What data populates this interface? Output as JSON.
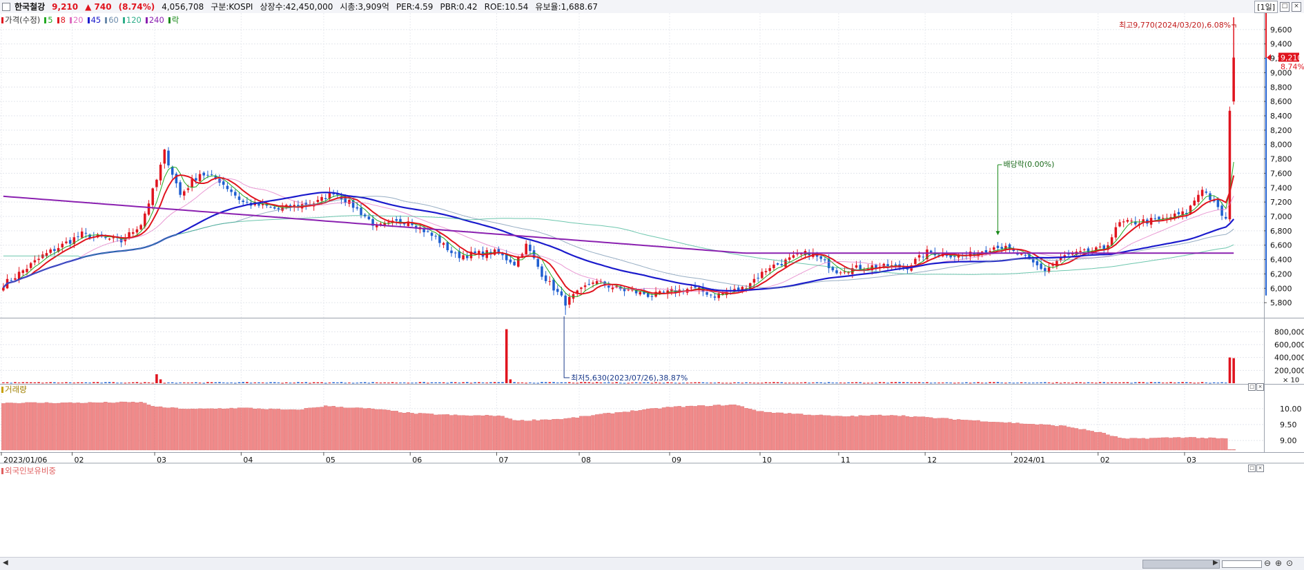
{
  "header": {
    "stock_name": "한국철강",
    "price": "9,210",
    "change": "▲ 740",
    "change_pct": "(8.74%)",
    "volume": "4,056,708",
    "market": "구분:KOSPI",
    "shares": "상장수:42,450,000",
    "market_cap": "시총:3,909억",
    "per": "PER:4.59",
    "pbr": "PBR:0.42",
    "roe": "ROE:10.54",
    "float": "유보율:1,688.67",
    "period": "[1일]"
  },
  "legend": {
    "price_label": "가격(수정)",
    "ma": [
      {
        "label": "5",
        "color": "#22aa22"
      },
      {
        "label": "8",
        "color": "#e0141e"
      },
      {
        "label": "20",
        "color": "#e06cc0"
      },
      {
        "label": "45",
        "color": "#1a1acc"
      },
      {
        "label": "60",
        "color": "#6a8aaa"
      },
      {
        "label": "120",
        "color": "#2eae8a"
      },
      {
        "label": "240",
        "color": "#8a20b0"
      }
    ],
    "ex_label": "락"
  },
  "panels": {
    "volume_label": "거래량",
    "foreign_label": "외국인보유비중"
  },
  "colors": {
    "up": "#e0141e",
    "down": "#1f5fd0",
    "foreign_bar": "#f08a8a",
    "volume_bar": "#e0141e"
  },
  "chart_data": [
    {
      "type": "candlestick",
      "title": "가격(수정)",
      "ylim": [
        5600,
        9800
      ],
      "y_ticks": [
        "9,600",
        "9,400",
        "9,200",
        "9,000",
        "8,800",
        "8,600",
        "8,400",
        "8,200",
        "8,000",
        "7,800",
        "7,600",
        "7,400",
        "7,200",
        "7,000",
        "6,800",
        "6,600",
        "6,400",
        "6,200",
        "6,000",
        "5,800"
      ],
      "y_tick_values": [
        9600,
        9400,
        9200,
        9000,
        8800,
        8600,
        8400,
        8200,
        8000,
        7800,
        7600,
        7400,
        7200,
        7000,
        6800,
        6600,
        6400,
        6200,
        6000,
        5800
      ],
      "x_tick_labels": [
        "2023/01/06",
        "02",
        "03",
        "04",
        "05",
        "06",
        "07",
        "08",
        "09",
        "10",
        "11",
        "12",
        "2024/01",
        "02",
        "03"
      ],
      "x_tick_dates": [
        "2023-01-06",
        "2023-02-01",
        "2023-03-02",
        "2023-04-03",
        "2023-05-02",
        "2023-06-01",
        "2023-07-03",
        "2023-08-01",
        "2023-09-01",
        "2023-10-04",
        "2023-11-01",
        "2023-12-01",
        "2024-01-02",
        "2024-02-01",
        "2024-03-04"
      ],
      "last_date": "2024-03-20",
      "close_path": [
        [
          "2023-01-06",
          6050
        ],
        [
          "2023-01-20",
          6450
        ],
        [
          "2023-02-03",
          6750
        ],
        [
          "2023-02-17",
          6650
        ],
        [
          "2023-02-24",
          6900
        ],
        [
          "2023-03-02",
          7500
        ],
        [
          "2023-03-06",
          7900
        ],
        [
          "2023-03-10",
          7300
        ],
        [
          "2023-03-17",
          7600
        ],
        [
          "2023-03-24",
          7500
        ],
        [
          "2023-04-03",
          7200
        ],
        [
          "2023-04-14",
          7100
        ],
        [
          "2023-04-28",
          7200
        ],
        [
          "2023-05-04",
          7350
        ],
        [
          "2023-05-12",
          7100
        ],
        [
          "2023-05-19",
          6850
        ],
        [
          "2023-05-31",
          6950
        ],
        [
          "2023-06-09",
          6700
        ],
        [
          "2023-06-16",
          6450
        ],
        [
          "2023-06-30",
          6500
        ],
        [
          "2023-07-07",
          6350
        ],
        [
          "2023-07-12",
          6600
        ],
        [
          "2023-07-18",
          6200
        ],
        [
          "2023-07-26",
          5800
        ],
        [
          "2023-08-04",
          6100
        ],
        [
          "2023-08-14",
          6000
        ],
        [
          "2023-08-25",
          5900
        ],
        [
          "2023-09-08",
          6000
        ],
        [
          "2023-09-18",
          5900
        ],
        [
          "2023-09-27",
          6000
        ],
        [
          "2023-10-06",
          6300
        ],
        [
          "2023-10-13",
          6400
        ],
        [
          "2023-10-20",
          6500
        ],
        [
          "2023-10-31",
          6250
        ],
        [
          "2023-11-10",
          6300
        ],
        [
          "2023-11-24",
          6300
        ],
        [
          "2023-12-01",
          6500
        ],
        [
          "2023-12-15",
          6450
        ],
        [
          "2023-12-27",
          6600
        ],
        [
          "2024-01-04",
          6450
        ],
        [
          "2024-01-12",
          6250
        ],
        [
          "2024-01-19",
          6450
        ],
        [
          "2024-02-02",
          6550
        ],
        [
          "2024-02-08",
          6900
        ],
        [
          "2024-02-22",
          6950
        ],
        [
          "2024-03-04",
          7050
        ],
        [
          "2024-03-08",
          7400
        ],
        [
          "2024-03-14",
          7100
        ],
        [
          "2024-03-18",
          6950
        ],
        [
          "2024-03-19",
          8470
        ],
        [
          "2024-03-20",
          9210
        ]
      ],
      "moving_averages": [
        {
          "name": "5",
          "color": "#22aa22"
        },
        {
          "name": "8",
          "color": "#e0141e"
        },
        {
          "name": "20",
          "color": "#e06cc0"
        },
        {
          "name": "45",
          "color": "#1a1acc"
        },
        {
          "name": "60",
          "color": "#6a8aaa"
        },
        {
          "name": "120",
          "color": "#2eae8a"
        },
        {
          "name": "240",
          "color": "#8a20b0"
        }
      ],
      "current_price_label": "9,210",
      "current_pct_label": "8.74%",
      "annotations": {
        "high": {
          "text": "최고9,770(2024/03/20),6.08%",
          "value": 9770,
          "date": "2024-03-20"
        },
        "low": {
          "text": "최저5,630(2023/07/26),38.87%",
          "value": 5630,
          "date": "2023-07-26"
        },
        "ex_div": {
          "text": "배당락(0.00%)",
          "date": "2023-12-27"
        }
      }
    },
    {
      "type": "bar",
      "title": "거래량",
      "unit_label": "× 10",
      "ylim": [
        0,
        900000
      ],
      "y_ticks": [
        "800,000",
        "600,000",
        "400,000",
        "200,000"
      ],
      "y_tick_values": [
        800000,
        600000,
        400000,
        200000
      ],
      "spikes": [
        {
          "date": "2023-03-02",
          "value": 140000
        },
        {
          "date": "2023-03-03",
          "value": 60000
        },
        {
          "date": "2023-07-05",
          "value": 840000
        },
        {
          "date": "2023-07-06",
          "value": 60000
        },
        {
          "date": "2024-03-19",
          "value": 400000
        },
        {
          "date": "2024-03-20",
          "value": 390000
        }
      ],
      "baseline": 12000
    },
    {
      "type": "bar",
      "title": "외국인보유비중",
      "ylim": [
        8.7,
        10.45
      ],
      "y_ticks": [
        "10.00",
        "9.50",
        "9.00"
      ],
      "y_tick_values": [
        10.0,
        9.5,
        9.0
      ],
      "path": [
        [
          "2023-01-06",
          10.18
        ],
        [
          "2023-02-01",
          10.18
        ],
        [
          "2023-02-24",
          10.2
        ],
        [
          "2023-03-02",
          10.05
        ],
        [
          "2023-03-15",
          9.98
        ],
        [
          "2023-04-03",
          10.02
        ],
        [
          "2023-04-20",
          9.95
        ],
        [
          "2023-05-02",
          10.08
        ],
        [
          "2023-05-20",
          9.98
        ],
        [
          "2023-06-01",
          9.85
        ],
        [
          "2023-06-20",
          9.78
        ],
        [
          "2023-07-03",
          9.78
        ],
        [
          "2023-07-10",
          9.62
        ],
        [
          "2023-07-26",
          9.68
        ],
        [
          "2023-08-10",
          9.85
        ],
        [
          "2023-09-01",
          10.05
        ],
        [
          "2023-09-25",
          10.12
        ],
        [
          "2023-10-04",
          9.9
        ],
        [
          "2023-11-01",
          9.75
        ],
        [
          "2023-11-20",
          9.8
        ],
        [
          "2023-12-01",
          9.72
        ],
        [
          "2024-01-02",
          9.55
        ],
        [
          "2024-01-20",
          9.45
        ],
        [
          "2024-02-01",
          9.25
        ],
        [
          "2024-02-10",
          9.05
        ],
        [
          "2024-03-04",
          9.1
        ],
        [
          "2024-03-18",
          9.05
        ]
      ]
    }
  ]
}
